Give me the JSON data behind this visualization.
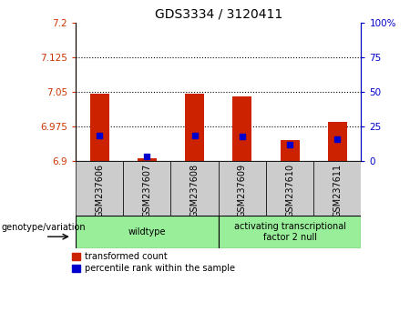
{
  "title": "GDS3334 / 3120411",
  "samples": [
    "GSM237606",
    "GSM237607",
    "GSM237608",
    "GSM237609",
    "GSM237610",
    "GSM237611"
  ],
  "transformed_count": [
    7.045,
    6.905,
    7.045,
    7.04,
    6.945,
    6.985
  ],
  "percentile_rank": [
    18.5,
    3.5,
    18.5,
    17.5,
    12.0,
    15.5
  ],
  "ylim_left": [
    6.9,
    7.2
  ],
  "ylim_right": [
    0,
    100
  ],
  "left_ticks": [
    6.9,
    6.975,
    7.05,
    7.125,
    7.2
  ],
  "right_ticks": [
    0,
    25,
    50,
    75,
    100
  ],
  "left_tick_labels": [
    "6.9",
    "6.975",
    "7.05",
    "7.125",
    "7.2"
  ],
  "right_tick_labels": [
    "0",
    "25",
    "50",
    "75",
    "100%"
  ],
  "left_color": "#cc3300",
  "right_color": "#0000cc",
  "bar_color_red": "#cc2200",
  "bar_color_blue": "#0000cc",
  "group_labels": [
    "wildtype",
    "activating transcriptional\nfactor 2 null"
  ],
  "group_ranges": [
    [
      0,
      3
    ],
    [
      3,
      6
    ]
  ],
  "group_color": "#99ee99",
  "sample_bg_color": "#cccccc",
  "bar_width": 0.4,
  "base_value": 6.9,
  "dotted_grid_values": [
    6.975,
    7.05,
    7.125
  ],
  "legend_red_label": "transformed count",
  "legend_blue_label": "percentile rank within the sample",
  "xlabel_text": "genotype/variation"
}
